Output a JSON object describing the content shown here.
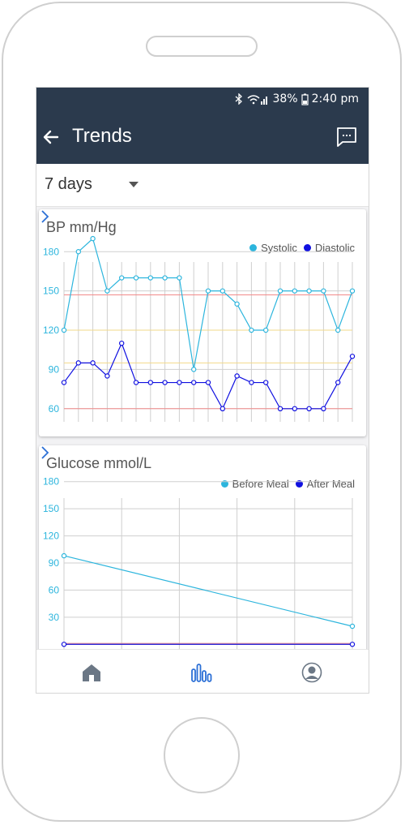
{
  "status_bar": {
    "battery": "38%",
    "time": "2:40 pm"
  },
  "app_bar": {
    "title": "Trends"
  },
  "range": {
    "label": "7 days"
  },
  "bp_card": {
    "title": "BP mm/Hg"
  },
  "glucose_card": {
    "title": "Glucose mmol/L"
  },
  "colors": {
    "appbar": "#2b3a4d",
    "series_light": "#2cb5dd",
    "series_dark": "#1010e0",
    "limit_red": "#f28b8b",
    "limit_yellow": "#f2d98a"
  },
  "icons": [
    "back-arrow-icon",
    "chat-icon",
    "dropdown-icon",
    "chevron-right-icon",
    "home-icon",
    "trends-icon",
    "profile-icon"
  ],
  "chart_data": [
    {
      "type": "line",
      "title": "BP mm/Hg",
      "ylim": [
        45,
        200
      ],
      "yticks": [
        60,
        90,
        120,
        150,
        180
      ],
      "series": [
        {
          "name": "Systolic",
          "color": "#2cb5dd",
          "values": [
            120,
            180,
            190,
            150,
            160,
            160,
            160,
            160,
            160,
            90,
            150,
            150,
            140,
            120,
            120,
            150,
            150,
            150,
            150,
            120,
            150
          ]
        },
        {
          "name": "Diastolic",
          "color": "#1010e0",
          "values": [
            80,
            95,
            95,
            85,
            110,
            80,
            80,
            80,
            80,
            80,
            80,
            60,
            85,
            80,
            80,
            60,
            60,
            60,
            60,
            80,
            100
          ]
        }
      ],
      "reference_lines": [
        {
          "value": 147,
          "color": "#f28b8b"
        },
        {
          "value": 120,
          "color": "#f2d98a"
        },
        {
          "value": 95,
          "color": "#f2d98a"
        },
        {
          "value": 60,
          "color": "#f28b8b"
        }
      ],
      "grid": true
    },
    {
      "type": "line",
      "title": "Glucose mmol/L",
      "ylim": [
        -15,
        195
      ],
      "yticks": [
        30,
        60,
        90,
        120,
        150,
        180
      ],
      "series": [
        {
          "name": "Before Meal",
          "color": "#2cb5dd",
          "values": [
            98,
            20
          ]
        },
        {
          "name": "After Meal",
          "color": "#1010e0",
          "values": [
            0,
            0
          ]
        }
      ],
      "reference_lines": [
        {
          "value": 1,
          "color": "#f28b8b"
        },
        {
          "value": 0,
          "color": "#f2d98a"
        }
      ],
      "grid": true
    }
  ]
}
